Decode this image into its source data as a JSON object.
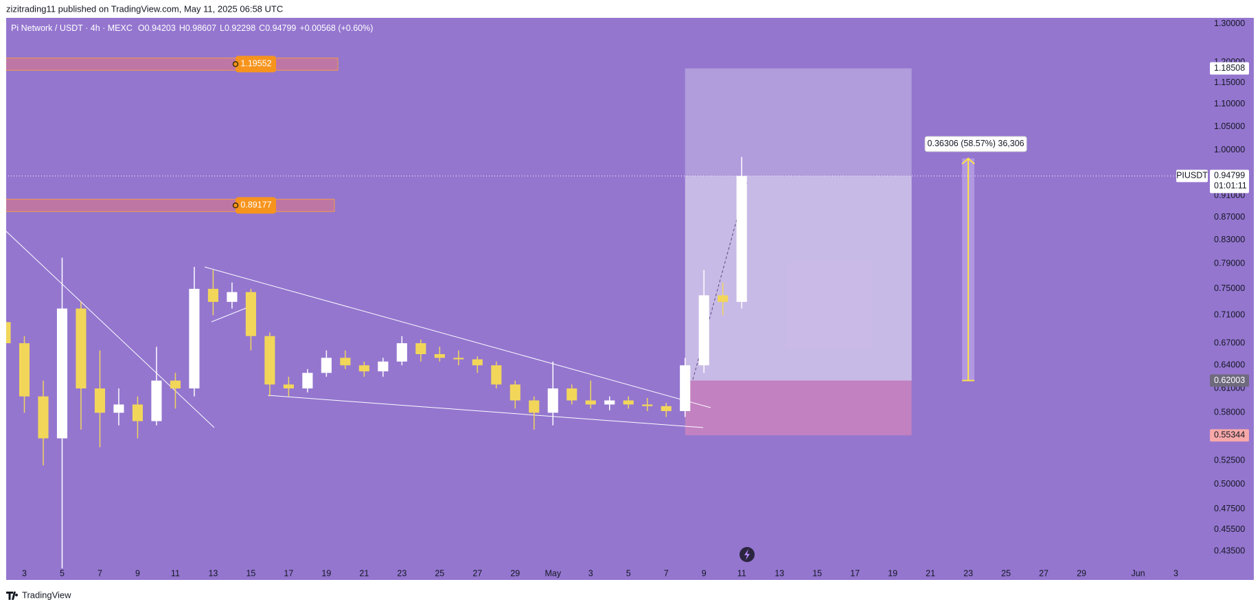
{
  "header": "zizitrading11 published on TradingView.com, May 11, 2025 06:58 UTC",
  "footer": "TradingView",
  "chart_data": {
    "type": "candlestick",
    "title": "Pi Network / USDT · 4h · MEXC",
    "ohlc_line": {
      "open": "O0.94203",
      "high": "H0.98607",
      "low": "L0.92298",
      "close": "C0.94799",
      "change": "+0.00568 (+0.60%)"
    },
    "x": [
      "04-02",
      "04-03",
      "04-04",
      "04-05",
      "04-06",
      "04-07",
      "04-08",
      "04-09",
      "04-10",
      "04-11",
      "04-12",
      "04-13",
      "04-14",
      "04-15",
      "04-16",
      "04-17",
      "04-18",
      "04-19",
      "04-20",
      "04-21",
      "04-22",
      "04-23",
      "04-24",
      "04-25",
      "04-26",
      "04-27",
      "04-28",
      "04-29",
      "04-30",
      "05-01",
      "05-02",
      "05-03",
      "05-04",
      "05-05",
      "05-06",
      "05-07",
      "05-08",
      "05-09",
      "05-10",
      "05-11"
    ],
    "open": [
      0.7,
      0.67,
      0.6,
      0.55,
      0.72,
      0.61,
      0.58,
      0.59,
      0.57,
      0.62,
      0.61,
      0.75,
      0.73,
      0.745,
      0.68,
      0.615,
      0.61,
      0.63,
      0.65,
      0.64,
      0.632,
      0.645,
      0.67,
      0.655,
      0.65,
      0.648,
      0.64,
      0.615,
      0.595,
      0.58,
      0.61,
      0.595,
      0.59,
      0.595,
      0.59,
      0.588,
      0.582,
      0.64,
      0.74,
      0.73
    ],
    "high": [
      0.71,
      0.68,
      0.62,
      0.8,
      0.73,
      0.66,
      0.61,
      0.6,
      0.665,
      0.63,
      0.785,
      0.78,
      0.76,
      0.75,
      0.685,
      0.625,
      0.635,
      0.66,
      0.66,
      0.645,
      0.65,
      0.68,
      0.675,
      0.665,
      0.66,
      0.652,
      0.645,
      0.62,
      0.6,
      0.645,
      0.615,
      0.62,
      0.6,
      0.6,
      0.598,
      0.592,
      0.65,
      0.78,
      0.76,
      0.986
    ],
    "low": [
      0.66,
      0.58,
      0.52,
      0.42,
      0.56,
      0.54,
      0.565,
      0.55,
      0.565,
      0.585,
      0.6,
      0.71,
      0.72,
      0.66,
      0.6,
      0.6,
      0.605,
      0.625,
      0.635,
      0.625,
      0.625,
      0.64,
      0.645,
      0.645,
      0.64,
      0.63,
      0.61,
      0.585,
      0.56,
      0.565,
      0.59,
      0.585,
      0.583,
      0.585,
      0.582,
      0.575,
      0.575,
      0.63,
      0.71,
      0.72
    ],
    "close": [
      0.67,
      0.6,
      0.55,
      0.72,
      0.61,
      0.58,
      0.59,
      0.57,
      0.62,
      0.61,
      0.75,
      0.73,
      0.745,
      0.68,
      0.615,
      0.61,
      0.63,
      0.65,
      0.64,
      0.632,
      0.645,
      0.67,
      0.655,
      0.65,
      0.648,
      0.64,
      0.615,
      0.595,
      0.58,
      0.61,
      0.595,
      0.59,
      0.595,
      0.59,
      0.588,
      0.582,
      0.64,
      0.74,
      0.73,
      0.948
    ],
    "up_color": "#ffffff",
    "down_color": "#f2d65a",
    "xlim": [
      "04-02",
      "06-04"
    ],
    "xticks": [
      {
        "value": "04-03",
        "label": "3"
      },
      {
        "value": "04-05",
        "label": "5"
      },
      {
        "value": "04-07",
        "label": "7"
      },
      {
        "value": "04-09",
        "label": "9"
      },
      {
        "value": "04-11",
        "label": "11"
      },
      {
        "value": "04-13",
        "label": "13"
      },
      {
        "value": "04-15",
        "label": "15"
      },
      {
        "value": "04-17",
        "label": "17"
      },
      {
        "value": "04-19",
        "label": "19"
      },
      {
        "value": "04-21",
        "label": "21"
      },
      {
        "value": "04-23",
        "label": "23"
      },
      {
        "value": "04-25",
        "label": "25"
      },
      {
        "value": "04-27",
        "label": "27"
      },
      {
        "value": "04-29",
        "label": "29"
      },
      {
        "value": "05-01",
        "label": "May"
      },
      {
        "value": "05-03",
        "label": "3"
      },
      {
        "value": "05-05",
        "label": "5"
      },
      {
        "value": "05-07",
        "label": "7"
      },
      {
        "value": "05-09",
        "label": "9"
      },
      {
        "value": "05-11",
        "label": "11"
      },
      {
        "value": "05-13",
        "label": "13"
      },
      {
        "value": "05-15",
        "label": "15"
      },
      {
        "value": "05-17",
        "label": "17"
      },
      {
        "value": "05-19",
        "label": "19"
      },
      {
        "value": "05-21",
        "label": "21"
      },
      {
        "value": "05-23",
        "label": "23"
      },
      {
        "value": "05-25",
        "label": "25"
      },
      {
        "value": "05-27",
        "label": "27"
      },
      {
        "value": "05-29",
        "label": "29"
      },
      {
        "value": "06-01",
        "label": "Jun"
      },
      {
        "value": "06-03",
        "label": "3"
      }
    ],
    "ylim": [
      0.41,
      1.316
    ],
    "ylog": true,
    "yticks": [
      {
        "value": 0.435,
        "label": "0.43500"
      },
      {
        "value": 0.455,
        "label": "0.45500"
      },
      {
        "value": 0.475,
        "label": "0.47500"
      },
      {
        "value": 0.5,
        "label": "0.50000"
      },
      {
        "value": 0.525,
        "label": "0.52500"
      },
      {
        "value": 0.58,
        "label": "0.58000"
      },
      {
        "value": 0.61,
        "label": "0.61000"
      },
      {
        "value": 0.64,
        "label": "0.64000"
      },
      {
        "value": 0.67,
        "label": "0.67000"
      },
      {
        "value": 0.71,
        "label": "0.71000"
      },
      {
        "value": 0.75,
        "label": "0.75000"
      },
      {
        "value": 0.79,
        "label": "0.79000"
      },
      {
        "value": 0.83,
        "label": "0.83000"
      },
      {
        "value": 0.87,
        "label": "0.87000"
      },
      {
        "value": 0.91,
        "label": "0.91000"
      },
      {
        "value": 1.0,
        "label": "1.00000"
      },
      {
        "value": 1.05,
        "label": "1.05000"
      },
      {
        "value": 1.1,
        "label": "1.10000"
      },
      {
        "value": 1.15,
        "label": "1.15000"
      },
      {
        "value": 1.2,
        "label": "1.20000"
      },
      {
        "value": 1.3,
        "label": "1.30000"
      }
    ],
    "levels": [
      1.19552,
      0.89177
    ],
    "position": {
      "start": "05-08",
      "end": "05-20",
      "entry": 0.62003,
      "target": 1.18508,
      "stop": 0.55344
    },
    "measure": {
      "x": "05-23",
      "from": 0.62003,
      "to": 0.98309,
      "label": "0.36306 (58.57%) 36,306"
    },
    "last_price": {
      "symbol": "PIUSDT",
      "value": 0.94799,
      "countdown": "01:01:11"
    }
  }
}
